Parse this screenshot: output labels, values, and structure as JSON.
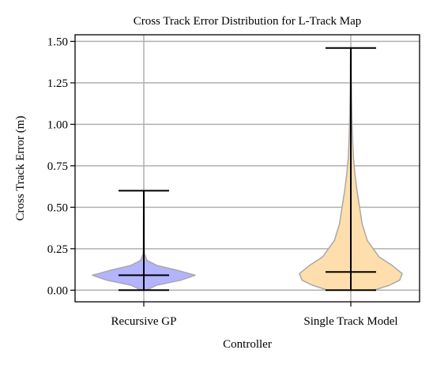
{
  "chart_data": {
    "type": "violin",
    "title": "Cross Track Error Distribution for L-Track Map",
    "xlabel": "Controller",
    "ylabel": "Cross Track Error (m)",
    "ylim": [
      -0.07,
      1.54
    ],
    "yticks": [
      0.0,
      0.25,
      0.5,
      0.75,
      1.0,
      1.25,
      1.5
    ],
    "ytick_labels": [
      "0.00",
      "0.25",
      "0.50",
      "0.75",
      "1.00",
      "1.25",
      "1.50"
    ],
    "grid": true,
    "categories": [
      "Recursive GP",
      "Single Track Model"
    ],
    "series": [
      {
        "min": 0.0,
        "median": 0.09,
        "max": 0.6,
        "color": "#b3b3ff",
        "density_profile": [
          [
            0.0,
            0.05
          ],
          [
            0.03,
            0.25
          ],
          [
            0.06,
            0.72
          ],
          [
            0.09,
            1.0
          ],
          [
            0.12,
            0.65
          ],
          [
            0.15,
            0.25
          ],
          [
            0.18,
            0.06
          ],
          [
            0.22,
            0.012
          ],
          [
            0.3,
            0.008
          ],
          [
            0.4,
            0.008
          ],
          [
            0.5,
            0.006
          ],
          [
            0.6,
            0.005
          ]
        ]
      },
      {
        "min": 0.0,
        "median": 0.11,
        "max": 1.46,
        "color": "#ffdead",
        "density_profile": [
          [
            0.0,
            0.45
          ],
          [
            0.03,
            0.75
          ],
          [
            0.06,
            0.95
          ],
          [
            0.1,
            1.0
          ],
          [
            0.15,
            0.8
          ],
          [
            0.2,
            0.55
          ],
          [
            0.3,
            0.32
          ],
          [
            0.4,
            0.22
          ],
          [
            0.5,
            0.17
          ],
          [
            0.6,
            0.12
          ],
          [
            0.7,
            0.08
          ],
          [
            0.8,
            0.05
          ],
          [
            0.9,
            0.035
          ],
          [
            1.0,
            0.025
          ],
          [
            1.1,
            0.018
          ],
          [
            1.2,
            0.013
          ],
          [
            1.3,
            0.01
          ],
          [
            1.4,
            0.008
          ],
          [
            1.46,
            0.006
          ]
        ]
      }
    ]
  }
}
